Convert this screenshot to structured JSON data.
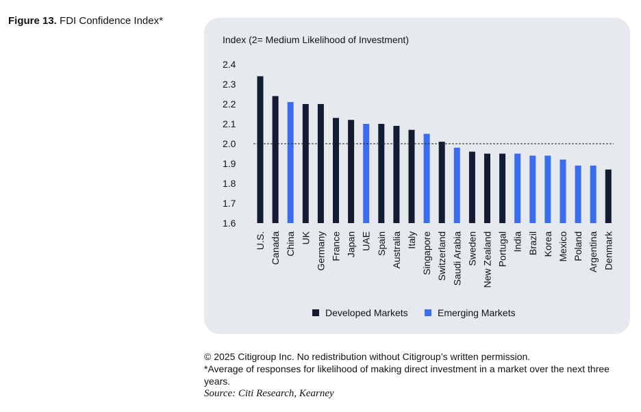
{
  "figure": {
    "label": "Figure 13.",
    "title": "FDI Confidence Index*"
  },
  "chart_data": {
    "type": "bar",
    "ylabel": "Index (2= Medium Likelihood of Investment)",
    "ylim": [
      1.6,
      2.4
    ],
    "yticks": [
      "2.4",
      "2.3",
      "2.2",
      "2.1",
      "2.0",
      "1.9",
      "1.8",
      "1.7",
      "1.6"
    ],
    "reference_line": 2.0,
    "categories": [
      "U.S.",
      "Canada",
      "China",
      "UK",
      "Germany",
      "France",
      "Japan",
      "UAE",
      "Spain",
      "Australia",
      "Italy",
      "Singapore",
      "Switzerland",
      "Saudi Arabia",
      "Sweden",
      "New Zealand",
      "Portugal",
      "India",
      "Brazil",
      "Korea",
      "Mexico",
      "Poland",
      "Argentina",
      "Denmark"
    ],
    "values": [
      2.34,
      2.24,
      2.21,
      2.2,
      2.2,
      2.13,
      2.12,
      2.1,
      2.1,
      2.09,
      2.07,
      2.05,
      2.01,
      1.98,
      1.96,
      1.95,
      1.95,
      1.95,
      1.94,
      1.94,
      1.92,
      1.89,
      1.89,
      1.87
    ],
    "groups": [
      "Developed Markets",
      "Developed Markets",
      "Emerging Markets",
      "Developed Markets",
      "Developed Markets",
      "Developed Markets",
      "Developed Markets",
      "Emerging Markets",
      "Developed Markets",
      "Developed Markets",
      "Developed Markets",
      "Emerging Markets",
      "Developed Markets",
      "Emerging Markets",
      "Developed Markets",
      "Developed Markets",
      "Developed Markets",
      "Emerging Markets",
      "Emerging Markets",
      "Emerging Markets",
      "Emerging Markets",
      "Emerging Markets",
      "Emerging Markets",
      "Developed Markets"
    ],
    "legend": [
      {
        "name": "Developed Markets",
        "color": "#141c33"
      },
      {
        "name": "Emerging Markets",
        "color": "#3b6df0"
      }
    ]
  },
  "notes": {
    "copyright": "© 2025 Citigroup Inc. No redistribution without Citigroup’s written permission.",
    "footnote": "*Average of responses for likelihood of making direct investment in a market over the next three years.",
    "source": "Source: Citi Research, Kearney"
  }
}
